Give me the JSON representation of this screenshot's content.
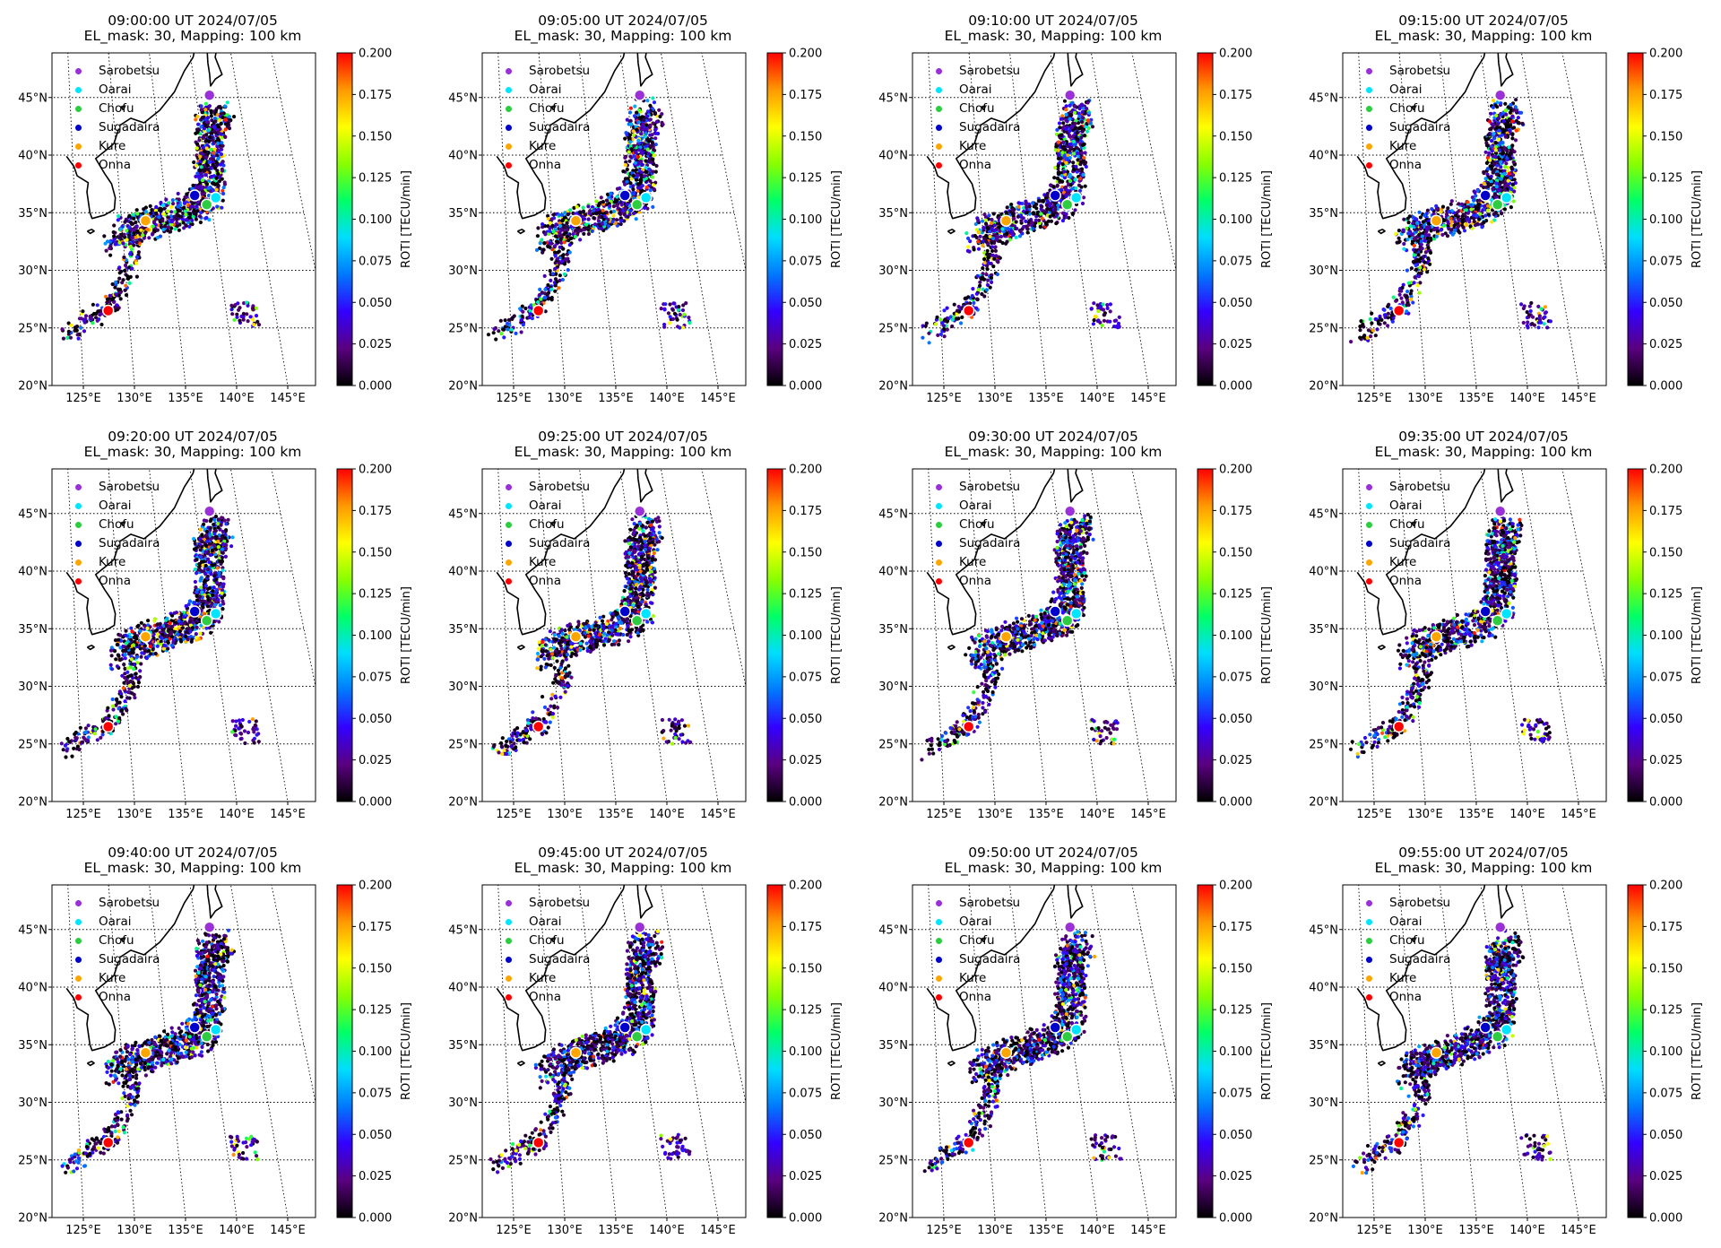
{
  "figure": {
    "panels": [
      {
        "title": "09:00:00 UT 2024/07/05",
        "subtitle": "EL_mask: 30, Mapping: 100 km"
      },
      {
        "title": "09:05:00 UT 2024/07/05",
        "subtitle": "EL_mask: 30, Mapping: 100 km"
      },
      {
        "title": "09:10:00 UT 2024/07/05",
        "subtitle": "EL_mask: 30, Mapping: 100 km"
      },
      {
        "title": "09:15:00 UT 2024/07/05",
        "subtitle": "EL_mask: 30, Mapping: 100 km"
      },
      {
        "title": "09:20:00 UT 2024/07/05",
        "subtitle": "EL_mask: 30, Mapping: 100 km"
      },
      {
        "title": "09:25:00 UT 2024/07/05",
        "subtitle": "EL_mask: 30, Mapping: 100 km"
      },
      {
        "title": "09:30:00 UT 2024/07/05",
        "subtitle": "EL_mask: 30, Mapping: 100 km"
      },
      {
        "title": "09:35:00 UT 2024/07/05",
        "subtitle": "EL_mask: 30, Mapping: 100 km"
      },
      {
        "title": "09:40:00 UT 2024/07/05",
        "subtitle": "EL_mask: 30, Mapping: 100 km"
      },
      {
        "title": "09:45:00 UT 2024/07/05",
        "subtitle": "EL_mask: 30, Mapping: 100 km"
      },
      {
        "title": "09:50:00 UT 2024/07/05",
        "subtitle": "EL_mask: 30, Mapping: 100 km"
      },
      {
        "title": "09:55:00 UT 2024/07/05",
        "subtitle": "EL_mask: 30, Mapping: 100 km"
      }
    ],
    "legend": [
      {
        "label": "Sarobetsu",
        "color": "#9b30d9"
      },
      {
        "label": "Oarai",
        "color": "#00e5ff"
      },
      {
        "label": "Chofu",
        "color": "#2ecc40"
      },
      {
        "label": "Sugadaira",
        "color": "#0000cd"
      },
      {
        "label": "Kure",
        "color": "#ffa500"
      },
      {
        "label": "Onna",
        "color": "#ff0000"
      }
    ],
    "lat_ticks": [
      "20°N",
      "25°N",
      "30°N",
      "35°N",
      "40°N",
      "45°N"
    ],
    "lon_ticks": [
      "125°E",
      "130°E",
      "135°E",
      "140°E",
      "145°E"
    ],
    "colorbar": {
      "label": "ROTI [TECU/min]",
      "min": 0.0,
      "max": 0.2,
      "ticks": [
        "0.000",
        "0.025",
        "0.050",
        "0.075",
        "0.100",
        "0.125",
        "0.150",
        "0.175",
        "0.200"
      ],
      "colormap": [
        "#000000",
        "#5a0080",
        "#3300ff",
        "#0077ff",
        "#00ddff",
        "#00ff66",
        "#88ff00",
        "#ffff00",
        "#ff9900",
        "#ff0000"
      ]
    }
  }
}
